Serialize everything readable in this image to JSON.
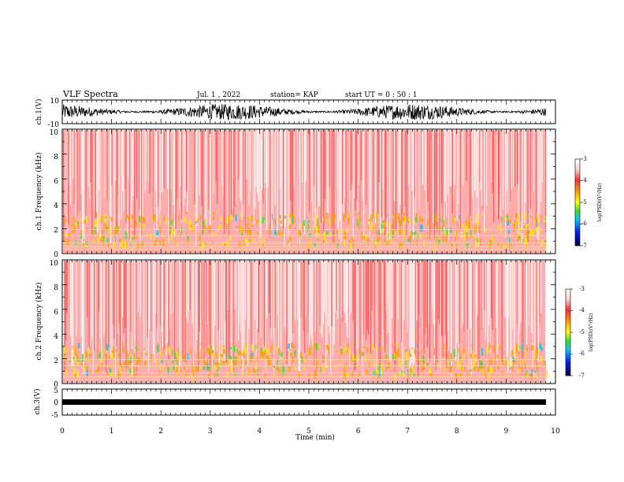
{
  "header": {
    "title": "VLF Spectra",
    "date": "Jul. 1 , 2022",
    "station": "station= KAP",
    "start": "start UT = 0 : 50 : 1"
  },
  "colors": {
    "axis": "#000000",
    "waveform": "#000000",
    "colormap": [
      "#ffffff",
      "#ffd6d6",
      "#ff2a2a",
      "#ffa500",
      "#ffff00",
      "#00e000",
      "#00c8ff",
      "#0000ff",
      "#000066"
    ]
  },
  "chart_data": [
    {
      "type": "line",
      "panel": "ch1-waveform",
      "ylabel": "ch.1(V)",
      "ylim": [
        -10,
        10
      ],
      "yticks": [
        "10",
        "-10"
      ],
      "xlim": [
        0,
        10
      ],
      "description_values": {
        "approx_envelope_min": -8,
        "approx_envelope_max": 8
      }
    },
    {
      "type": "heatmap",
      "panel": "ch1-spectrogram",
      "ylabel": "ch.1 Frequency (kHz)",
      "ylim": [
        0,
        10
      ],
      "yticks": [
        "0",
        "2",
        "4",
        "6",
        "8",
        "10"
      ],
      "xlim": [
        0,
        9.85
      ],
      "colorbar": {
        "label": "log(PSD)(V²/Hz)",
        "range": [
          -7,
          -3
        ],
        "ticks": [
          "-3",
          "-4",
          "-5",
          "-6",
          "-7"
        ]
      }
    },
    {
      "type": "heatmap",
      "panel": "ch2-spectrogram",
      "ylabel": "ch.2 Frequency (kHz)",
      "ylim": [
        0,
        10
      ],
      "yticks": [
        "0",
        "2",
        "4",
        "6",
        "8",
        "10"
      ],
      "xlim": [
        0,
        9.85
      ],
      "colorbar": {
        "label": "log(PSD)(V²/Hz)",
        "range": [
          -7,
          -3
        ],
        "ticks": [
          "-3",
          "-4",
          "-5",
          "-6",
          "-7"
        ]
      }
    },
    {
      "type": "line",
      "panel": "ch3-waveform",
      "ylabel": "ch.3(V)",
      "ylim": [
        -5,
        5
      ],
      "yticks": [
        "5",
        "0",
        "-5"
      ],
      "xlim": [
        0,
        10
      ],
      "description_values": {
        "approx_envelope_min": -0.3,
        "approx_envelope_max": 0.3
      }
    }
  ],
  "xaxis": {
    "label": "Time (min)",
    "ticks": [
      "0",
      "1",
      "2",
      "3",
      "4",
      "5",
      "6",
      "7",
      "8",
      "9",
      "10"
    ]
  }
}
